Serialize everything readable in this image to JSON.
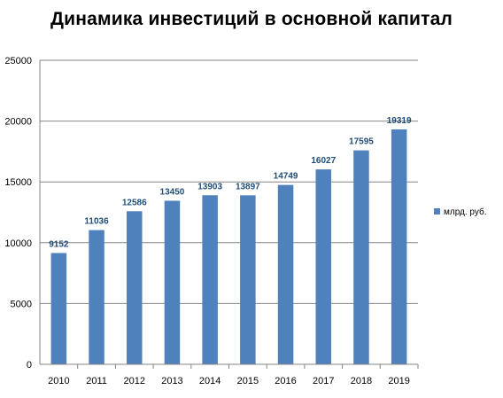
{
  "colors": {
    "bar": "#4f81bd",
    "data_label": "#1f4e79",
    "grid": "#868686",
    "axis": "#868686",
    "background": "#ffffff"
  },
  "chart_data": {
    "type": "bar",
    "title": "Динамика инвестиций в основной капитал",
    "categories": [
      "2010",
      "2011",
      "2012",
      "2013",
      "2014",
      "2015",
      "2016",
      "2017",
      "2018",
      "2019"
    ],
    "series": [
      {
        "name": "млрд. руб.",
        "values": [
          9152,
          11036,
          12586,
          13450,
          13903,
          13897,
          14749,
          16027,
          17595,
          19319
        ]
      }
    ],
    "y_ticks": [
      "0",
      "5000",
      "10000",
      "15000",
      "20000",
      "25000"
    ],
    "ylim": [
      0,
      25000
    ],
    "y_step": 5000,
    "grid": true,
    "legend_position": "right",
    "data_labels": true
  }
}
